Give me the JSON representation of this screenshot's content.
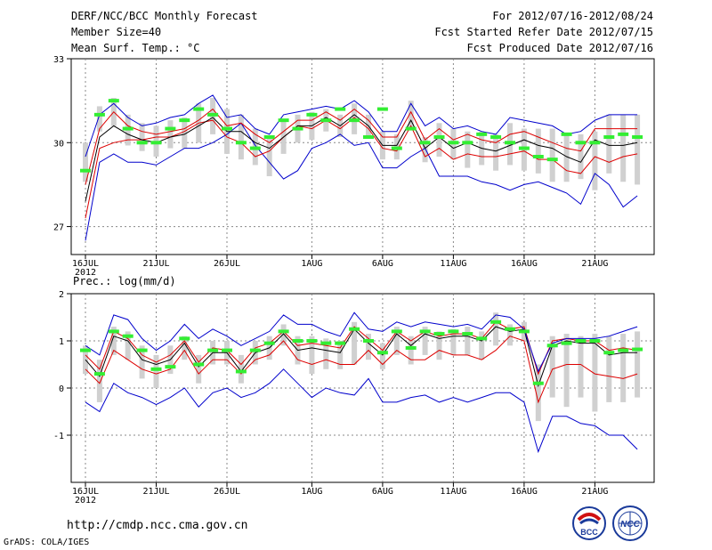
{
  "header": {
    "title": "DERF/NCC/BCC Monthly Forecast",
    "member_size": "Member Size=40",
    "variable": "Mean Surf. Temp.: °C",
    "period": "For 2012/07/16-2012/08/24",
    "started": "Fcst Started Refer Date 2012/07/15",
    "produced": "Fcst Produced Date 2012/07/16"
  },
  "footer": {
    "url": "http://cmdp.ncc.cma.gov.cn",
    "grads": "GrADS: COLA/IGES",
    "logo_bcc": "BCC",
    "logo_ncc": "NCC"
  },
  "colors": {
    "mean": "#000000",
    "spread": "#dd0000",
    "minmax": "#0000cc",
    "box": "#d0d0d0",
    "marker": "#33ee33",
    "grid": "#888888"
  },
  "chart_data": [
    {
      "type": "line",
      "title": "Mean Surf. Temp.: °C",
      "ylim": [
        26,
        33
      ],
      "yticks": [
        27,
        30,
        33
      ],
      "x_days": 40,
      "xtick_labels": [
        {
          "day": 0,
          "label": "16JUL",
          "sub": "2012"
        },
        {
          "day": 5,
          "label": "21JUL"
        },
        {
          "day": 10,
          "label": "26JUL"
        },
        {
          "day": 16,
          "label": "1AUG"
        },
        {
          "day": 21,
          "label": "6AUG"
        },
        {
          "day": 26,
          "label": "11AUG"
        },
        {
          "day": 31,
          "label": "16AUG"
        },
        {
          "day": 36,
          "label": "21AUG"
        }
      ],
      "series": [
        {
          "name": "max",
          "values": [
            26.5,
            29.3,
            29.6,
            29.3,
            29.3,
            29.2,
            29.5,
            29.8,
            29.8,
            30.0,
            30.3,
            30.7,
            29.9,
            29.3,
            28.7,
            29.0,
            29.8,
            30.0,
            30.3,
            29.9,
            30.0,
            29.1,
            29.1,
            29.5,
            29.8,
            28.8,
            28.8,
            28.8,
            28.6,
            28.5,
            28.3,
            28.5,
            28.6,
            28.4,
            28.2,
            27.8,
            28.9,
            28.5,
            27.7,
            28.1
          ]
        },
        {
          "name": "p_low",
          "values": [
            27.3,
            29.8,
            30.0,
            30.1,
            30.1,
            30.2,
            30.2,
            30.4,
            30.7,
            30.8,
            30.2,
            30.0,
            29.5,
            29.7,
            30.2,
            30.6,
            30.5,
            30.8,
            30.5,
            30.9,
            30.5,
            29.8,
            29.7,
            30.6,
            29.5,
            29.8,
            29.4,
            29.6,
            29.5,
            29.5,
            29.6,
            29.7,
            29.4,
            29.4,
            29.0,
            28.9,
            29.5,
            29.3,
            29.5,
            29.6
          ]
        },
        {
          "name": "mean",
          "values": [
            27.9,
            30.2,
            30.6,
            30.3,
            30.1,
            30.0,
            30.2,
            30.3,
            30.6,
            30.9,
            30.4,
            30.4,
            30.0,
            29.8,
            30.2,
            30.6,
            30.6,
            30.9,
            30.6,
            31.0,
            30.6,
            29.9,
            29.9,
            30.8,
            29.8,
            30.2,
            29.8,
            30.0,
            29.8,
            29.7,
            29.9,
            30.1,
            29.9,
            29.8,
            29.5,
            29.3,
            30.1,
            29.9,
            29.9,
            30.0
          ]
        },
        {
          "name": "p_high",
          "values": [
            28.5,
            30.5,
            31.1,
            30.6,
            30.4,
            30.3,
            30.4,
            30.5,
            30.8,
            31.2,
            30.6,
            30.7,
            30.3,
            30.0,
            30.4,
            30.8,
            30.8,
            31.1,
            30.8,
            31.2,
            30.8,
            30.2,
            30.2,
            31.1,
            30.1,
            30.5,
            30.1,
            30.3,
            30.1,
            30.0,
            30.3,
            30.4,
            30.2,
            30.0,
            29.8,
            29.7,
            30.5,
            30.5,
            30.5,
            30.5
          ]
        },
        {
          "name": "min",
          "values": [
            29.5,
            31.0,
            31.4,
            30.9,
            30.6,
            30.7,
            30.9,
            31.0,
            31.4,
            31.7,
            30.9,
            31.0,
            30.5,
            30.3,
            31.0,
            31.1,
            31.2,
            31.3,
            31.2,
            31.5,
            31.1,
            30.4,
            30.4,
            31.4,
            30.6,
            30.9,
            30.5,
            30.6,
            30.4,
            30.3,
            30.9,
            30.8,
            30.7,
            30.6,
            30.3,
            30.4,
            30.8,
            31.0,
            31.0,
            31.0
          ]
        }
      ],
      "box_low": [
        28.6,
        30.4,
        30.6,
        29.9,
        29.7,
        29.5,
        29.8,
        29.8,
        30.0,
        30.3,
        29.6,
        29.4,
        29.2,
        28.8,
        29.6,
        30.0,
        30.1,
        30.4,
        30.2,
        30.3,
        30.2,
        29.4,
        29.4,
        30.5,
        29.3,
        29.5,
        29.4,
        29.1,
        29.2,
        29.0,
        29.2,
        29.0,
        28.9,
        28.6,
        28.6,
        28.7,
        28.3,
        28.9,
        28.6,
        28.5
      ],
      "box_high": [
        30.0,
        31.3,
        31.6,
        31.0,
        30.7,
        30.6,
        30.8,
        30.9,
        31.4,
        31.6,
        31.2,
        31.0,
        30.5,
        30.2,
        30.8,
        31.0,
        31.1,
        31.2,
        31.0,
        31.4,
        31.0,
        30.4,
        30.3,
        31.5,
        30.2,
        30.7,
        30.5,
        30.4,
        30.4,
        30.3,
        30.7,
        30.5,
        30.5,
        30.5,
        30.3,
        30.3,
        30.4,
        31.0,
        31.0,
        31.0
      ],
      "markers": [
        29.0,
        31.0,
        31.5,
        30.5,
        30.0,
        30.0,
        30.5,
        30.8,
        31.2,
        31.0,
        30.5,
        30.0,
        29.8,
        30.2,
        30.8,
        30.5,
        31.0,
        30.8,
        31.2,
        30.8,
        30.2,
        31.2,
        29.8,
        30.5,
        30.0,
        30.2,
        30.0,
        30.0,
        30.3,
        30.2,
        30.0,
        29.8,
        29.5,
        29.4,
        30.3,
        30.0,
        30.0,
        30.2,
        30.3,
        30.2
      ]
    },
    {
      "type": "line",
      "title": "Prec.: log(mm/d)",
      "ylim": [
        -2,
        2
      ],
      "yticks": [
        -1,
        0,
        1,
        2
      ],
      "x_days": 40,
      "xtick_labels": [
        {
          "day": 0,
          "label": "16JUL",
          "sub": "2012"
        },
        {
          "day": 5,
          "label": "21JUL"
        },
        {
          "day": 10,
          "label": "26JUL"
        },
        {
          "day": 16,
          "label": "1AUG"
        },
        {
          "day": 21,
          "label": "6AUG"
        },
        {
          "day": 26,
          "label": "11AUG"
        },
        {
          "day": 31,
          "label": "16AUG"
        },
        {
          "day": 36,
          "label": "21AUG"
        }
      ],
      "series": [
        {
          "name": "min",
          "values": [
            -0.3,
            -0.5,
            0.1,
            -0.1,
            -0.2,
            -0.35,
            -0.2,
            0.0,
            -0.4,
            -0.1,
            0.0,
            -0.2,
            -0.1,
            0.1,
            0.4,
            0.1,
            -0.2,
            0.0,
            -0.1,
            -0.15,
            0.2,
            -0.3,
            -0.3,
            -0.2,
            -0.15,
            -0.3,
            -0.2,
            -0.3,
            -0.2,
            -0.1,
            -0.1,
            -0.3,
            -1.35,
            -0.6,
            -0.6,
            -0.75,
            -0.8,
            -1.0,
            -1.0,
            -1.3
          ]
        },
        {
          "name": "p_low",
          "values": [
            0.4,
            0.1,
            0.8,
            0.6,
            0.4,
            0.3,
            0.4,
            0.8,
            0.3,
            0.6,
            0.6,
            0.3,
            0.6,
            0.7,
            1.0,
            0.6,
            0.5,
            0.6,
            0.5,
            0.5,
            0.8,
            0.5,
            0.8,
            0.6,
            0.6,
            0.8,
            0.7,
            0.7,
            0.6,
            0.8,
            1.1,
            1.0,
            -0.3,
            0.4,
            0.5,
            0.5,
            0.3,
            0.25,
            0.2,
            0.3
          ]
        },
        {
          "name": "mean",
          "values": [
            0.6,
            0.25,
            1.1,
            1.0,
            0.6,
            0.5,
            0.6,
            0.95,
            0.45,
            0.75,
            0.75,
            0.35,
            0.75,
            0.85,
            1.15,
            0.8,
            0.85,
            0.8,
            0.75,
            1.25,
            0.95,
            0.7,
            1.15,
            0.9,
            1.15,
            1.05,
            1.1,
            1.1,
            1.0,
            1.3,
            1.2,
            1.25,
            0.05,
            0.9,
            1.0,
            0.95,
            0.95,
            0.7,
            0.75,
            0.75
          ]
        },
        {
          "name": "p_high",
          "values": [
            0.7,
            0.4,
            1.2,
            1.05,
            0.7,
            0.55,
            0.7,
            1.0,
            0.55,
            0.85,
            0.8,
            0.5,
            0.85,
            0.95,
            1.2,
            0.9,
            0.95,
            0.9,
            0.85,
            1.3,
            1.05,
            0.8,
            1.2,
            1.0,
            1.2,
            1.1,
            1.15,
            1.15,
            1.05,
            1.4,
            1.25,
            1.3,
            0.3,
            1.0,
            1.05,
            1.0,
            1.0,
            0.8,
            0.85,
            0.8
          ]
        },
        {
          "name": "max",
          "values": [
            0.9,
            0.7,
            1.55,
            1.45,
            1.05,
            0.8,
            1.0,
            1.35,
            1.05,
            1.25,
            1.1,
            0.9,
            1.05,
            1.2,
            1.55,
            1.35,
            1.35,
            1.2,
            1.1,
            1.6,
            1.25,
            1.2,
            1.4,
            1.3,
            1.4,
            1.35,
            1.3,
            1.35,
            1.25,
            1.55,
            1.5,
            1.25,
            0.35,
            0.95,
            1.05,
            1.05,
            1.05,
            1.1,
            1.2,
            1.3
          ]
        }
      ],
      "box_low": [
        0.3,
        -0.3,
        0.7,
        0.6,
        0.2,
        0.0,
        0.3,
        0.6,
        0.1,
        0.5,
        0.5,
        0.1,
        0.5,
        0.6,
        0.9,
        0.5,
        0.3,
        0.4,
        0.4,
        0.5,
        0.6,
        0.4,
        0.7,
        0.5,
        0.7,
        0.6,
        0.7,
        0.7,
        0.6,
        0.9,
        0.9,
        1.0,
        -0.7,
        -0.2,
        -0.4,
        -0.2,
        -0.5,
        -0.3,
        -0.3,
        -0.2
      ],
      "box_high": [
        0.9,
        0.6,
        1.3,
        1.2,
        0.9,
        0.7,
        0.9,
        1.1,
        0.7,
        1.0,
        1.0,
        0.7,
        1.0,
        1.1,
        1.35,
        1.1,
        1.1,
        1.05,
        1.0,
        1.4,
        1.15,
        0.95,
        1.3,
        1.1,
        1.3,
        1.2,
        1.25,
        1.3,
        1.2,
        1.6,
        1.35,
        1.4,
        0.5,
        1.1,
        1.15,
        1.1,
        1.15,
        1.1,
        1.15,
        1.2
      ],
      "markers": [
        0.8,
        0.3,
        1.2,
        1.1,
        0.8,
        0.4,
        0.45,
        1.05,
        0.5,
        0.8,
        0.8,
        0.35,
        0.8,
        0.95,
        1.2,
        1.0,
        1.0,
        0.95,
        0.95,
        1.25,
        1.0,
        0.75,
        1.2,
        0.85,
        1.2,
        1.15,
        1.2,
        1.15,
        1.05,
        1.4,
        1.25,
        1.2,
        0.1,
        0.9,
        0.95,
        1.0,
        1.0,
        0.75,
        0.8,
        0.82
      ]
    }
  ]
}
